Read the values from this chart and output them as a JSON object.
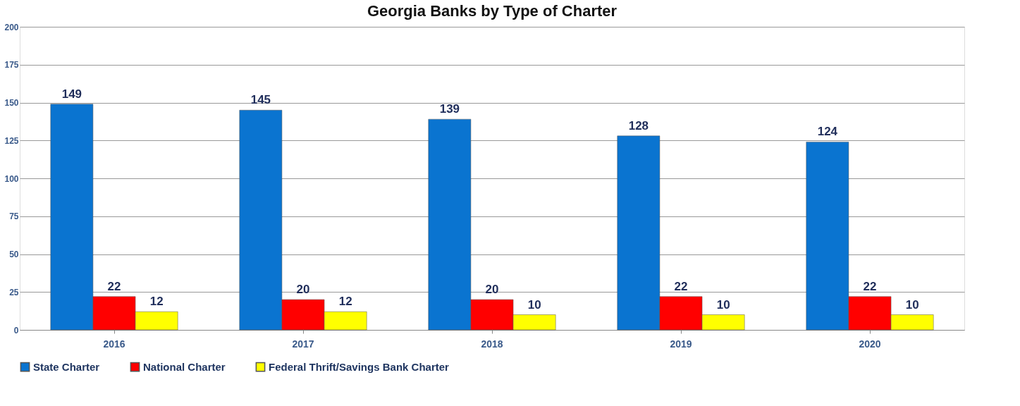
{
  "chart_data": {
    "type": "bar",
    "title": "Georgia Banks by Type of Charter",
    "categories": [
      "2016",
      "2017",
      "2018",
      "2019",
      "2020"
    ],
    "series": [
      {
        "name": "State Charter",
        "color": "#0a74d0",
        "values": [
          149,
          145,
          139,
          128,
          124
        ]
      },
      {
        "name": "National Charter",
        "color": "#ff0000",
        "values": [
          22,
          20,
          20,
          22,
          22
        ]
      },
      {
        "name": "Federal Thrift/Savings Bank Charter",
        "color": "#ffff00",
        "values": [
          12,
          12,
          10,
          10,
          10
        ]
      }
    ],
    "ylim": [
      0,
      200
    ],
    "yticks": [
      0,
      25,
      50,
      75,
      100,
      125,
      150,
      175,
      200
    ],
    "grid": "y",
    "legend": "bottom",
    "data_labels": true
  }
}
